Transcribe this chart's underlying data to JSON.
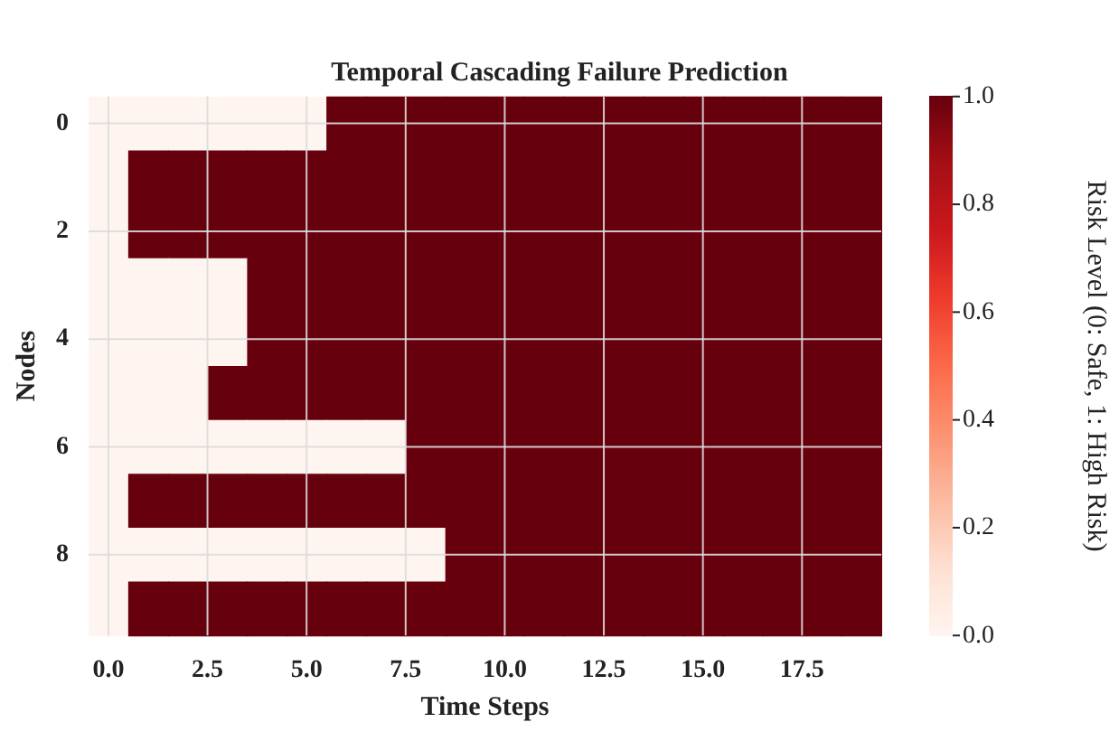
{
  "chart_data": {
    "type": "heatmap",
    "title": "Temporal Cascading Failure Prediction",
    "xlabel": "Time Steps",
    "ylabel": "Nodes",
    "clabel": "Risk Level (0: Safe, 1: High Risk)",
    "x": [
      0,
      1,
      2,
      3,
      4,
      5,
      6,
      7,
      8,
      9,
      10,
      11,
      12,
      13,
      14,
      15,
      16,
      17,
      18,
      19
    ],
    "y_categories": [
      "0",
      null,
      "2",
      null,
      "4",
      null,
      "6",
      null,
      "8",
      null
    ],
    "xlim": [
      -0.5,
      19.5
    ],
    "xticks": [
      {
        "value": 0,
        "label": "0.0"
      },
      {
        "value": 2.5,
        "label": "2.5"
      },
      {
        "value": 5,
        "label": "5.0"
      },
      {
        "value": 7.5,
        "label": "7.5"
      },
      {
        "value": 10,
        "label": "10.0"
      },
      {
        "value": 12.5,
        "label": "12.5"
      },
      {
        "value": 15,
        "label": "15.0"
      },
      {
        "value": 17.5,
        "label": "17.5"
      }
    ],
    "cells": [
      [
        0,
        0,
        0,
        0,
        0,
        0,
        1,
        1,
        1,
        1,
        1,
        1,
        1,
        1,
        1,
        1,
        1,
        1,
        1,
        1
      ],
      [
        0,
        1,
        1,
        1,
        1,
        1,
        1,
        1,
        1,
        1,
        1,
        1,
        1,
        1,
        1,
        1,
        1,
        1,
        1,
        1
      ],
      [
        0,
        1,
        1,
        1,
        1,
        1,
        1,
        1,
        1,
        1,
        1,
        1,
        1,
        1,
        1,
        1,
        1,
        1,
        1,
        1
      ],
      [
        0,
        0,
        0,
        0,
        1,
        1,
        1,
        1,
        1,
        1,
        1,
        1,
        1,
        1,
        1,
        1,
        1,
        1,
        1,
        1
      ],
      [
        0,
        0,
        0,
        0,
        1,
        1,
        1,
        1,
        1,
        1,
        1,
        1,
        1,
        1,
        1,
        1,
        1,
        1,
        1,
        1
      ],
      [
        0,
        0,
        0,
        1,
        1,
        1,
        1,
        1,
        1,
        1,
        1,
        1,
        1,
        1,
        1,
        1,
        1,
        1,
        1,
        1
      ],
      [
        0,
        0,
        0,
        0,
        0,
        0,
        0,
        0,
        1,
        1,
        1,
        1,
        1,
        1,
        1,
        1,
        1,
        1,
        1,
        1
      ],
      [
        0,
        1,
        1,
        1,
        1,
        1,
        1,
        1,
        1,
        1,
        1,
        1,
        1,
        1,
        1,
        1,
        1,
        1,
        1,
        1
      ],
      [
        0,
        0,
        0,
        0,
        0,
        0,
        0,
        0,
        0,
        1,
        1,
        1,
        1,
        1,
        1,
        1,
        1,
        1,
        1,
        1
      ],
      [
        0,
        1,
        1,
        1,
        1,
        1,
        1,
        1,
        1,
        1,
        1,
        1,
        1,
        1,
        1,
        1,
        1,
        1,
        1,
        1
      ]
    ],
    "clim": [
      0,
      1
    ],
    "cticks": [
      {
        "value": 0,
        "label": "0.0"
      },
      {
        "value": 0.2,
        "label": "0.2"
      },
      {
        "value": 0.4,
        "label": "0.4"
      },
      {
        "value": 0.6,
        "label": "0.6"
      },
      {
        "value": 0.8,
        "label": "0.8"
      },
      {
        "value": 1,
        "label": "1.0"
      }
    ],
    "grid": true
  }
}
